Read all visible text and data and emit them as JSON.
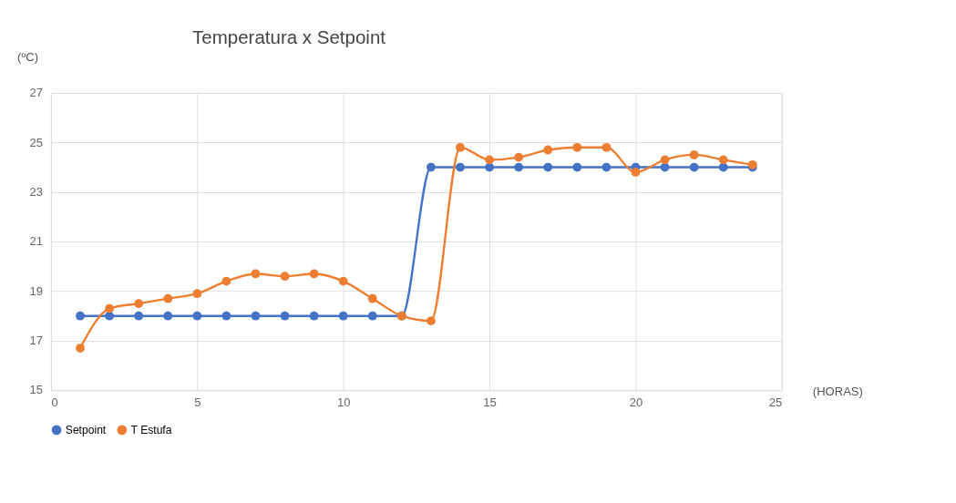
{
  "chart_data": {
    "type": "line",
    "title": "Temperatura x Setpoint",
    "xlabel": "(HORAS)",
    "ylabel": "(ºC)",
    "x": [
      1,
      2,
      3,
      4,
      5,
      6,
      7,
      8,
      9,
      10,
      11,
      12,
      13,
      14,
      15,
      16,
      17,
      18,
      19,
      20,
      21,
      22,
      23,
      24
    ],
    "series": [
      {
        "name": "Setpoint",
        "color": "#4472c4",
        "values": [
          18,
          18,
          18,
          18,
          18,
          18,
          18,
          18,
          18,
          18,
          18,
          18,
          24,
          24,
          24,
          24,
          24,
          24,
          24,
          24,
          24,
          24,
          24,
          24
        ]
      },
      {
        "name": "T Estufa",
        "color": "#ed7d31",
        "values": [
          16.7,
          18.3,
          18.5,
          18.7,
          18.9,
          19.4,
          19.7,
          19.6,
          19.7,
          19.4,
          18.7,
          18.0,
          17.8,
          24.8,
          24.3,
          24.4,
          24.7,
          24.8,
          24.8,
          23.8,
          24.3,
          24.5,
          24.3,
          24.1
        ]
      }
    ],
    "xlim": [
      0,
      25
    ],
    "xticks": [
      0,
      5,
      10,
      15,
      20,
      25
    ],
    "ylim": [
      15,
      27
    ],
    "yticks": [
      15,
      17,
      19,
      21,
      23,
      25,
      27
    ],
    "grid": true,
    "legend": "bottom",
    "marker": "circle",
    "line_style": "solid"
  }
}
